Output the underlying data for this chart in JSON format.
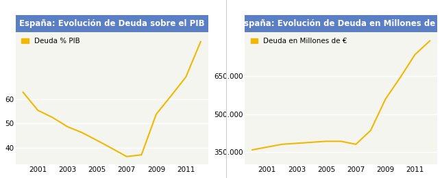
{
  "chart1": {
    "title": "España: Evolución de Deuda sobre el PIB",
    "legend_label": "Deuda % PIB",
    "years": [
      2000,
      2001,
      2002,
      2003,
      2004,
      2005,
      2006,
      2007,
      2008,
      2009,
      2010,
      2011,
      2012
    ],
    "values": [
      63.0,
      55.5,
      52.5,
      48.7,
      46.2,
      43.0,
      39.7,
      36.3,
      37.0,
      53.9,
      61.5,
      69.3,
      84.0
    ],
    "yticks": [
      40,
      50,
      60
    ],
    "ylim": [
      33,
      88
    ]
  },
  "chart2": {
    "title": "España: Evolución de Deuda en Millones de €",
    "legend_label": "Deuda en Millones de €",
    "years": [
      2000,
      2001,
      2002,
      2003,
      2004,
      2005,
      2006,
      2007,
      2008,
      2009,
      2010,
      2011,
      2012
    ],
    "values": [
      358000,
      369000,
      380000,
      384000,
      388000,
      392000,
      392000,
      380000,
      435000,
      559000,
      645000,
      736000,
      790000
    ],
    "yticks": [
      350000,
      500000,
      650000
    ],
    "ytick_labels": [
      "350.000",
      "500.000",
      "650.000"
    ],
    "ylim": [
      300000,
      825000
    ]
  },
  "line_color": "#F0B800",
  "title_bg_color": "#5B7FC4",
  "title_text_color": "#FFFFFF",
  "plot_bg_color": "#F5F5F0",
  "grid_color": "#FFFFFF",
  "xticks": [
    2001,
    2003,
    2005,
    2007,
    2009,
    2011
  ],
  "tick_fontsize": 7.5,
  "title_fontsize": 8.5,
  "legend_fontsize": 7.5
}
